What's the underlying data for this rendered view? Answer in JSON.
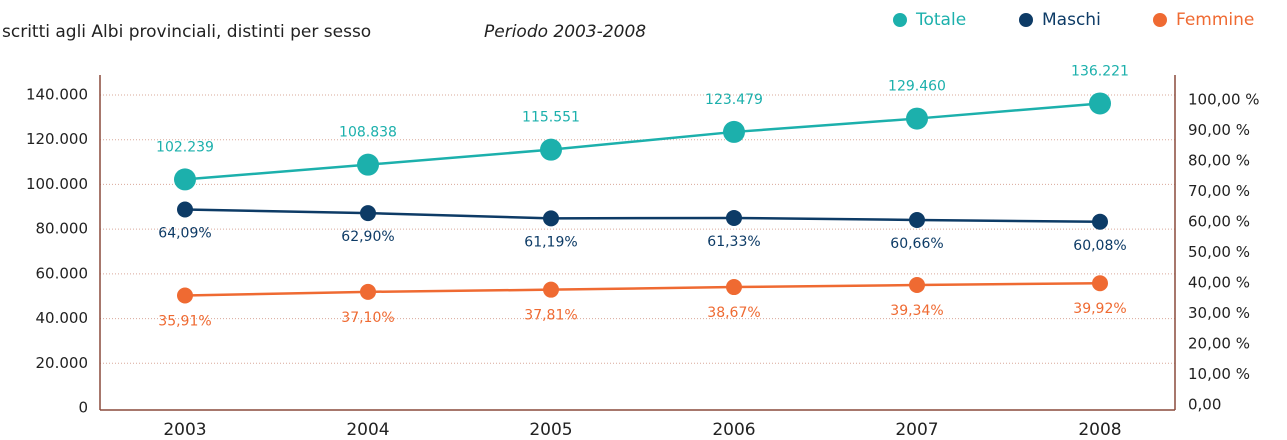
{
  "chart_data": {
    "type": "line",
    "title": "scritti agli Albi provinciali, distinti per sesso",
    "subtitle": "Periodo 2003-2008",
    "categories": [
      "2003",
      "2004",
      "2005",
      "2006",
      "2007",
      "2008"
    ],
    "series": [
      {
        "name": "Totale",
        "color": "#1cb0ac",
        "values": [
          102239,
          108838,
          115551,
          123479,
          129460,
          136221
        ],
        "value_labels": [
          "102.239",
          "108.838",
          "115.551",
          "123.479",
          "129.460",
          "136.221"
        ]
      },
      {
        "name": "Maschi",
        "color": "#0d3b66",
        "axis": "y2",
        "values": [
          64.09,
          62.9,
          61.19,
          61.33,
          60.66,
          60.08
        ],
        "value_labels": [
          "64,09%",
          "62,90%",
          "61,19%",
          "61,33%",
          "60,66%",
          "60,08%"
        ]
      },
      {
        "name": "Femmine",
        "color": "#ef6a32",
        "axis": "y2",
        "values": [
          35.91,
          37.1,
          37.81,
          38.67,
          39.34,
          39.92
        ],
        "value_labels": [
          "35,91%",
          "37,10%",
          "37,81%",
          "38,67%",
          "39,34%",
          "39,92%"
        ]
      }
    ],
    "ylim": [
      0,
      140000
    ],
    "yticks": [
      0,
      {
        "value": 20000,
        "label": "20.000"
      },
      {
        "value": 40000,
        "label": "40.000"
      },
      {
        "value": 60000,
        "label": "60.000"
      },
      {
        "value": 80000,
        "label": "80.000"
      },
      {
        "value": 100000,
        "label": "100.000"
      },
      {
        "value": 120000,
        "label": "120.000"
      },
      {
        "value": 140000,
        "label": "140.000"
      }
    ],
    "y2lim": [
      0,
      100
    ],
    "y2ticks": [
      {
        "value": 0,
        "label": "0,00"
      },
      {
        "value": 10,
        "label": "10,00 %"
      },
      {
        "value": 20,
        "label": "20,00 %"
      },
      {
        "value": 30,
        "label": "30,00 %"
      },
      {
        "value": 40,
        "label": "40,00 %"
      },
      {
        "value": 50,
        "label": "50,00 %"
      },
      {
        "value": 60,
        "label": "60,00 %"
      },
      {
        "value": 70,
        "label": "70,00 %"
      },
      {
        "value": 80,
        "label": "80,00 %"
      },
      {
        "value": 90,
        "label": "90,00 %"
      },
      {
        "value": 100,
        "label": "100,00 %"
      }
    ],
    "grid": true,
    "legend": "top-right"
  }
}
